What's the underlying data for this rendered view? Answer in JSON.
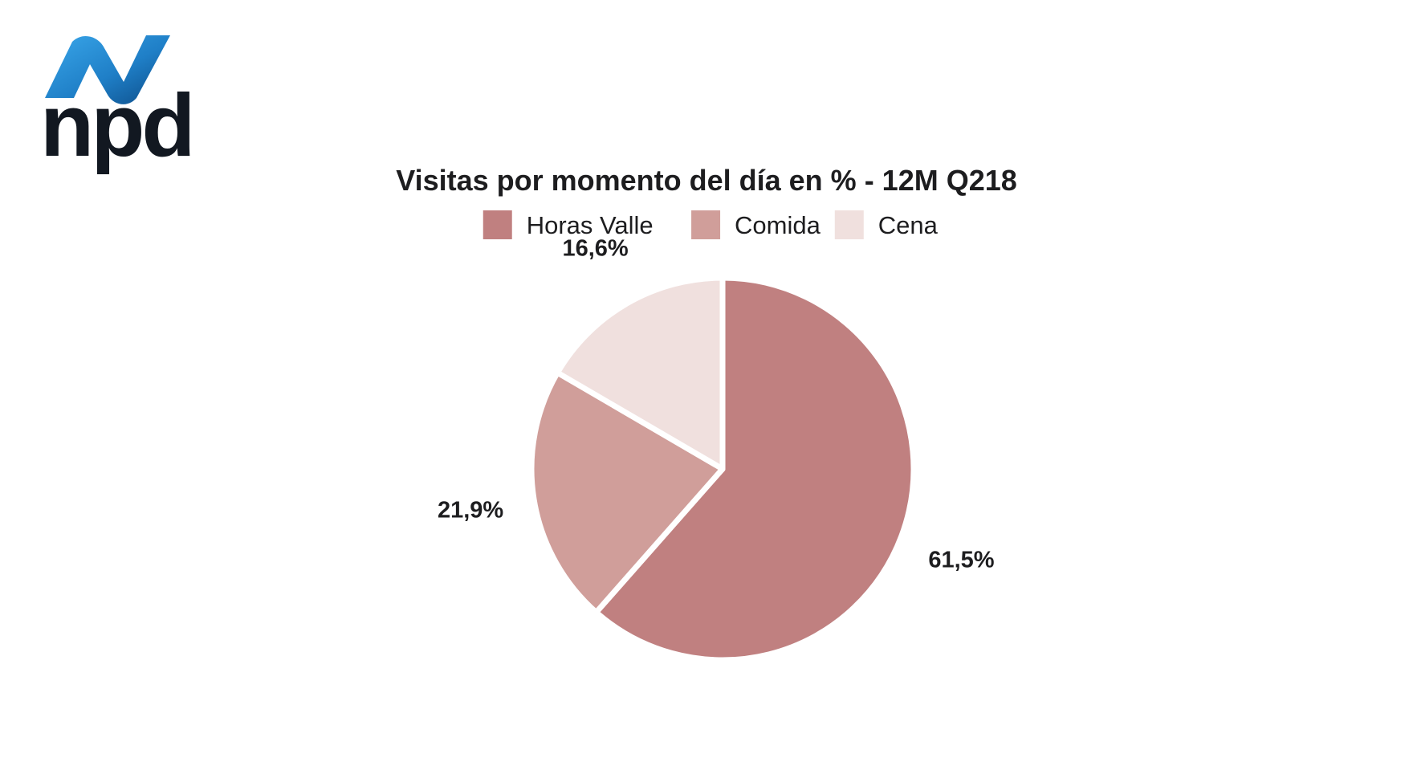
{
  "logo": {
    "text": "npd",
    "icon": "npd-swoosh-icon",
    "colors": [
      "#2a8fd6",
      "#0d4f8c"
    ]
  },
  "chart_data": {
    "type": "pie",
    "title": "Visitas por momento del día en % - 12M Q218",
    "legend_position": "top",
    "start_angle_deg": 0,
    "direction": "clockwise",
    "slices": [
      {
        "name": "Horas Valle",
        "value": 61.5,
        "label": "61,5%",
        "color": "#c08080"
      },
      {
        "name": "Comida",
        "value": 21.9,
        "label": "21,9%",
        "color": "#d09e9a"
      },
      {
        "name": "Cena",
        "value": 16.6,
        "label": "16,6%",
        "color": "#f0e0de"
      }
    ]
  }
}
